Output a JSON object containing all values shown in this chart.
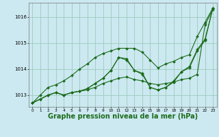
{
  "background_color": "#cce8f0",
  "plot_bg_color": "#cce8f0",
  "grid_color": "#99ccbb",
  "line_color": "#1a6b1a",
  "marker_color": "#1a6b1a",
  "xlabel": "Graphe pression niveau de la mer (hPa)",
  "xlabel_fontsize": 7,
  "ylim": [
    1012.55,
    1016.55
  ],
  "xlim": [
    -0.5,
    23.5
  ],
  "yticks": [
    1013,
    1014,
    1015,
    1016
  ],
  "xticks": [
    0,
    1,
    2,
    3,
    4,
    5,
    6,
    7,
    8,
    9,
    10,
    11,
    12,
    13,
    14,
    15,
    16,
    17,
    18,
    19,
    20,
    21,
    22,
    23
  ],
  "series": [
    [
      1012.7,
      1012.85,
      1013.0,
      1013.1,
      1013.0,
      1013.1,
      1013.15,
      1013.2,
      1013.3,
      1013.45,
      1013.55,
      1013.65,
      1013.7,
      1013.6,
      1013.55,
      1013.45,
      1013.4,
      1013.45,
      1013.5,
      1013.6,
      1013.65,
      1013.8,
      1015.7,
      1016.3
    ],
    [
      1012.7,
      1012.85,
      1013.0,
      1013.1,
      1013.0,
      1013.1,
      1013.15,
      1013.25,
      1013.45,
      1013.65,
      1013.95,
      1014.45,
      1014.4,
      1013.95,
      1013.8,
      1013.3,
      1013.2,
      1013.3,
      1013.5,
      1013.9,
      1014.05,
      1014.7,
      1015.1,
      1016.35
    ],
    [
      1012.7,
      1012.85,
      1013.0,
      1013.1,
      1013.0,
      1013.1,
      1013.15,
      1013.25,
      1013.45,
      1013.65,
      1013.95,
      1014.45,
      1014.35,
      1013.95,
      1013.85,
      1013.3,
      1013.2,
      1013.3,
      1013.55,
      1013.9,
      1014.1,
      1014.75,
      1015.15,
      1016.35
    ],
    [
      1012.7,
      1013.0,
      1013.3,
      1013.4,
      1013.55,
      1013.75,
      1014.0,
      1014.2,
      1014.45,
      1014.6,
      1014.7,
      1014.8,
      1014.8,
      1014.8,
      1014.65,
      1014.35,
      1014.05,
      1014.2,
      1014.3,
      1014.45,
      1014.55,
      1015.25,
      1015.8,
      1016.35
    ]
  ]
}
